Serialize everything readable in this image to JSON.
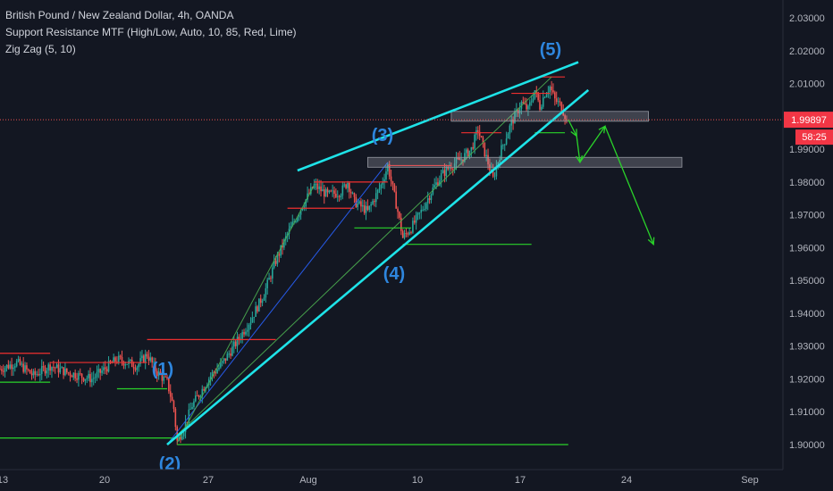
{
  "legend": {
    "symbol": "British Pound / New Zealand Dollar, 4h, OANDA",
    "indicator1": "Support Resistance MTF (High/Low, Auto, 10, 85, Red, Lime)",
    "indicator2": "Zig Zag (5, 10)"
  },
  "price_badge": {
    "value": "1.99897",
    "timer": "58:25",
    "color": "#f23645"
  },
  "colors": {
    "background": "#131722",
    "up": "#26a69a",
    "down": "#ef5350",
    "trendline": "#1ee3e8",
    "wave_label": "#2e86de",
    "support": "#2ad32a",
    "resistance": "#ef2f2f",
    "zigzag_green": "#4caf50",
    "zigzag_blue": "#2962ff",
    "projection": "#2ad32a"
  },
  "chart_data": {
    "type": "candlestick",
    "y_ticks": [
      "2.03000",
      "2.02000",
      "2.01000",
      "2.00000",
      "1.99000",
      "1.98000",
      "1.97000",
      "1.96000",
      "1.95000",
      "1.94000",
      "1.93000",
      "1.92000",
      "1.91000",
      "1.90000"
    ],
    "ylim": [
      1.897,
      2.034
    ],
    "x_ticks": [
      "13",
      "20",
      "27",
      "Aug",
      "10",
      "17",
      "24",
      "Sep"
    ],
    "close_price": 1.99897,
    "wave_labels": [
      "(1)",
      "(2)",
      "(3)",
      "(4)",
      "(5)"
    ],
    "waypoints": [
      [
        0,
        1.923
      ],
      [
        10,
        1.925
      ],
      [
        20,
        1.921
      ],
      [
        30,
        1.924
      ],
      [
        40,
        1.922
      ],
      [
        55,
        1.92
      ],
      [
        70,
        1.926
      ],
      [
        82,
        1.924
      ],
      [
        88,
        1.9275
      ],
      [
        94,
        1.922
      ],
      [
        100,
        1.919
      ],
      [
        104,
        1.911
      ],
      [
        106,
        1.901
      ],
      [
        110,
        1.905
      ],
      [
        115,
        1.912
      ],
      [
        120,
        1.916
      ],
      [
        126,
        1.921
      ],
      [
        132,
        1.924
      ],
      [
        140,
        1.93
      ],
      [
        150,
        1.938
      ],
      [
        158,
        1.946
      ],
      [
        165,
        1.956
      ],
      [
        172,
        1.964
      ],
      [
        180,
        1.972
      ],
      [
        188,
        1.979
      ],
      [
        196,
        1.976
      ],
      [
        204,
        1.977
      ],
      [
        208,
        1.98
      ],
      [
        212,
        1.974
      ],
      [
        220,
        1.971
      ],
      [
        228,
        1.979
      ],
      [
        232,
        1.985
      ],
      [
        238,
        1.971
      ],
      [
        241,
        1.963
      ],
      [
        246,
        1.966
      ],
      [
        252,
        1.971
      ],
      [
        258,
        1.977
      ],
      [
        264,
        1.982
      ],
      [
        270,
        1.985
      ],
      [
        276,
        1.987
      ],
      [
        282,
        1.99
      ],
      [
        286,
        1.996
      ],
      [
        290,
        1.989
      ],
      [
        295,
        1.981
      ],
      [
        300,
        1.99
      ],
      [
        306,
        1.998
      ],
      [
        312,
        2.004
      ],
      [
        316,
        2.002
      ],
      [
        320,
        2.008
      ],
      [
        323,
        2.003
      ],
      [
        326,
        2.007
      ],
      [
        329,
        2.009
      ],
      [
        332,
        2.005
      ],
      [
        336,
        2.003
      ],
      [
        339,
        1.999
      ]
    ],
    "support_resistance": [
      {
        "x1": 0,
        "x2": 30,
        "y": 1.9278,
        "kind": "resistance"
      },
      {
        "x1": 30,
        "x2": 88,
        "y": 1.925,
        "kind": "resistance"
      },
      {
        "x1": 0,
        "x2": 30,
        "y": 1.919,
        "kind": "support"
      },
      {
        "x1": 70,
        "x2": 100,
        "y": 1.917,
        "kind": "support"
      },
      {
        "x1": 88,
        "x2": 165,
        "y": 1.932,
        "kind": "resistance"
      },
      {
        "x1": 0,
        "x2": 106,
        "y": 1.902,
        "kind": "support"
      },
      {
        "x1": 106,
        "x2": 340,
        "y": 1.9,
        "kind": "support"
      },
      {
        "x1": 172,
        "x2": 212,
        "y": 1.972,
        "kind": "resistance"
      },
      {
        "x1": 188,
        "x2": 232,
        "y": 1.98,
        "kind": "resistance"
      },
      {
        "x1": 212,
        "x2": 246,
        "y": 1.966,
        "kind": "support"
      },
      {
        "x1": 241,
        "x2": 318,
        "y": 1.961,
        "kind": "support"
      },
      {
        "x1": 232,
        "x2": 270,
        "y": 1.985,
        "kind": "resistance"
      },
      {
        "x1": 276,
        "x2": 300,
        "y": 1.995,
        "kind": "resistance"
      },
      {
        "x1": 306,
        "x2": 329,
        "y": 2.007,
        "kind": "resistance"
      },
      {
        "x1": 323,
        "x2": 338,
        "y": 2.012,
        "kind": "resistance"
      },
      {
        "x1": 320,
        "x2": 338,
        "y": 1.995,
        "kind": "support"
      }
    ],
    "trendlines": [
      {
        "p1": [
          178,
          1.9835
        ],
        "p2": [
          346,
          2.0165
        ]
      },
      {
        "p1": [
          100,
          1.9
        ],
        "p2": [
          352,
          2.008
        ]
      }
    ],
    "zigzag": [
      {
        "p1": [
          100,
          1.9
        ],
        "p2": [
          232,
          1.986
        ],
        "color": "blue"
      },
      {
        "p1": [
          100,
          1.9
        ],
        "p2": [
          330,
          2.012
        ],
        "color": "green"
      },
      {
        "p1": [
          106,
          1.9005
        ],
        "p2": [
          188,
          1.979
        ],
        "color": "green"
      }
    ],
    "zones": [
      {
        "x1": 270,
        "x2": 388,
        "y1": 1.9985,
        "y2": 2.0015
      },
      {
        "x1": 220,
        "x2": 408,
        "y1": 1.9845,
        "y2": 1.9875
      }
    ],
    "projection": [
      [
        340,
        1.999
      ],
      [
        345,
        1.994
      ],
      [
        347,
        1.986
      ],
      [
        362,
        1.997
      ],
      [
        391,
        1.961
      ]
    ]
  }
}
